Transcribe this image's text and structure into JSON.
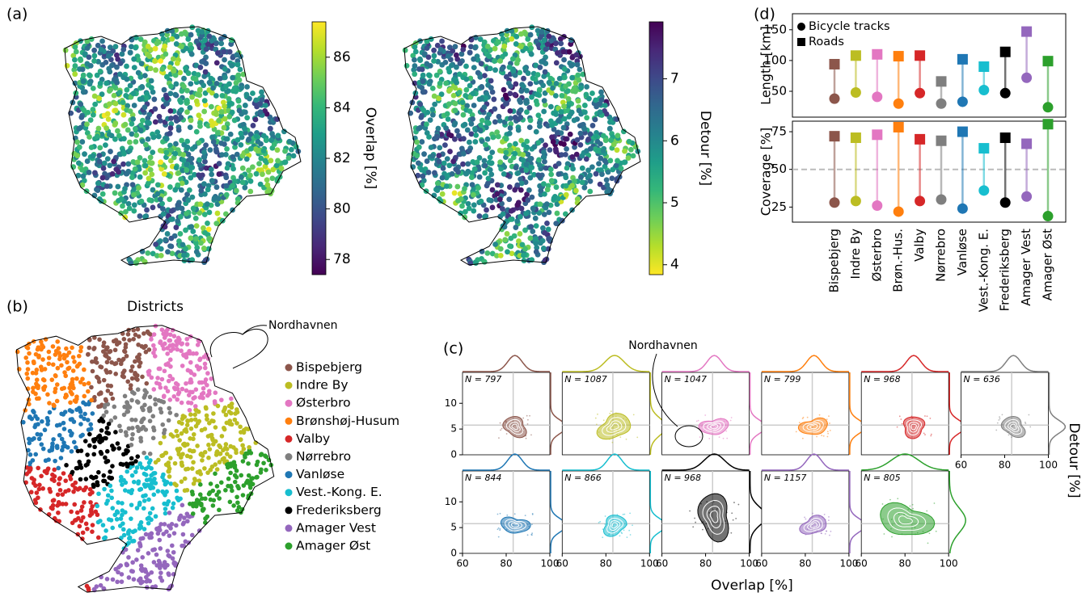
{
  "panel_labels": [
    "(a)",
    "(b)",
    "(c)",
    "(d)"
  ],
  "chart_data": [
    {
      "type": "colorbar",
      "label": "Overlap [%]",
      "colormap": "viridis",
      "ylim": [
        77.4,
        87.4
      ],
      "yticks": [
        78,
        80,
        82,
        84,
        86
      ]
    },
    {
      "type": "colorbar",
      "label": "Detour [%]",
      "colormap": "viridis_r",
      "ylim": [
        3.84,
        7.92
      ],
      "yticks": [
        4,
        5,
        6,
        7
      ]
    },
    {
      "type": "map",
      "title": "Districts",
      "annotation": "Nordhavnen",
      "series": [
        {
          "name": "Bispebjerg",
          "color": "#8c564b"
        },
        {
          "name": "Indre By",
          "color": "#bcbd22"
        },
        {
          "name": "Østerbro",
          "color": "#e377c2"
        },
        {
          "name": "Brønshøj-Husum",
          "color": "#ff7f0e"
        },
        {
          "name": "Valby",
          "color": "#d62728"
        },
        {
          "name": "Nørrebro",
          "color": "#7f7f7f"
        },
        {
          "name": "Vanløse",
          "color": "#1f77b4"
        },
        {
          "name": "Vest.-Kong. E.",
          "color": "#17becf"
        },
        {
          "name": "Frederiksberg",
          "color": "#000000"
        },
        {
          "name": "Amager Vest",
          "color": "#9467bd"
        },
        {
          "name": "Amager Øst",
          "color": "#2ca02c"
        }
      ]
    },
    {
      "type": "kde",
      "xlabel": "Overlap [%]",
      "ylabel": "Detour [%]",
      "annotation": "Nordhavnen",
      "values": [
        797,
        1087,
        1047,
        799,
        968,
        636,
        844,
        866,
        968,
        1157,
        805
      ],
      "value_labels": [
        "N = 797",
        "N = 1087",
        "N = 1047",
        "N = 799",
        "N = 968",
        "N = 636",
        "N = 844",
        "N = 866",
        "N = 968",
        "N = 1157",
        "N = 805"
      ],
      "colors": [
        "#8c564b",
        "#bcbd22",
        "#e377c2",
        "#ff7f0e",
        "#d62728",
        "#7f7f7f",
        "#1f77b4",
        "#17becf",
        "#000000",
        "#9467bd",
        "#2ca02c"
      ],
      "xlim": [
        60,
        100
      ],
      "xticks": [
        60,
        80,
        100
      ],
      "ylim": [
        0,
        16
      ],
      "yticks": [
        0,
        5,
        10
      ]
    },
    {
      "type": "dumbbell",
      "ylabel": "Length [km]",
      "colors": [
        "#8c564b",
        "#bcbd22",
        "#e377c2",
        "#ff7f0e",
        "#d62728",
        "#7f7f7f",
        "#1f77b4",
        "#17becf",
        "#000000",
        "#9467bd",
        "#2ca02c"
      ],
      "series": [
        {
          "name": "Bicycle tracks",
          "marker": "circle",
          "values": [
            38,
            48,
            41,
            30,
            47,
            30,
            33,
            52,
            47,
            72,
            24
          ]
        },
        {
          "name": "Roads",
          "marker": "square",
          "values": [
            94,
            108,
            110,
            107,
            108,
            66,
            102,
            90,
            114,
            147,
            99
          ]
        }
      ],
      "ylim": [
        8,
        176
      ],
      "yticks": [
        50,
        100,
        150
      ]
    },
    {
      "type": "dumbbell",
      "ylabel": "Coverage [%]",
      "categories": [
        "Bispebjerg",
        "Indre By",
        "Østerbro",
        "Brøn.-Hus.",
        "Valby",
        "Nørrebro",
        "Vanløse",
        "Vest.-Kong. E.",
        "Frederiksberg",
        "Amager Vest",
        "Amager Øst"
      ],
      "colors": [
        "#8c564b",
        "#bcbd22",
        "#e377c2",
        "#ff7f0e",
        "#d62728",
        "#7f7f7f",
        "#1f77b4",
        "#17becf",
        "#000000",
        "#9467bd",
        "#2ca02c"
      ],
      "series": [
        {
          "marker": "circle",
          "values": [
            28,
            29,
            26,
            22,
            29,
            30,
            24,
            36,
            28,
            32,
            19
          ]
        },
        {
          "marker": "square",
          "values": [
            72,
            71,
            73,
            78,
            70,
            69,
            75,
            64,
            71,
            67,
            80
          ]
        }
      ],
      "ylim": [
        15,
        82
      ],
      "yticks": [
        25,
        50,
        75
      ],
      "hline": 50
    }
  ]
}
